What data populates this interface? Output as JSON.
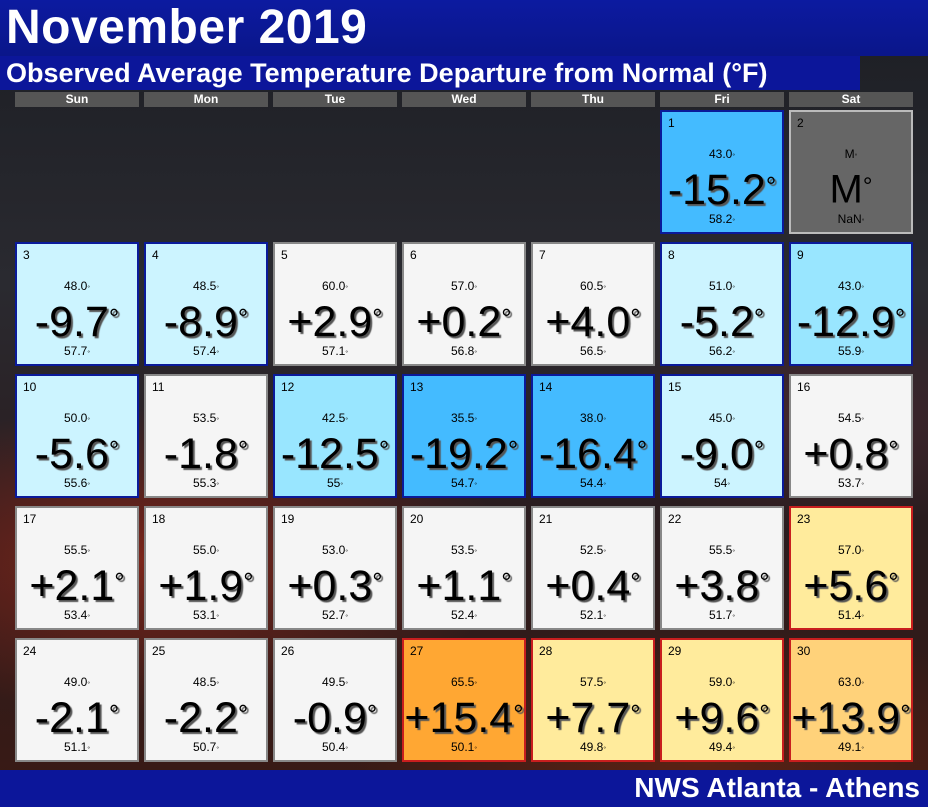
{
  "header": {
    "title": "November 2019",
    "subtitle": "Observed Average Temperature Departure from Normal (°F)"
  },
  "weekdays": [
    "Sun",
    "Mon",
    "Tue",
    "Wed",
    "Thu",
    "Fri",
    "Sat"
  ],
  "footer": {
    "text": "NWS Atlanta - Athens"
  },
  "colors": {
    "near_normal": "#f5f5f5",
    "cool_1": "#ccf4ff",
    "cool_2": "#99e6ff",
    "cool_3": "#44bbff",
    "warm_1": "#ffeb9c",
    "warm_2": "#ffd27a",
    "warm_3": "#ffa733",
    "missing": "#666666",
    "border_cool": "#0a1a9a",
    "border_warm": "#c81e1e",
    "border_neutral": "#888888"
  },
  "days": [
    {
      "day": "1",
      "col": 5,
      "row": 0,
      "observed": "43.0",
      "departure": "-15.2",
      "normal": "58.2",
      "color": "#44bbff",
      "border": "#0a1a9a"
    },
    {
      "day": "2",
      "col": 6,
      "row": 0,
      "observed": "M",
      "departure": "M",
      "normal": "NaN",
      "color": "#666666",
      "border": "#bbbbbb",
      "text_color": "#000000"
    },
    {
      "day": "3",
      "col": 0,
      "row": 1,
      "observed": "48.0",
      "departure": "-9.7",
      "normal": "57.7",
      "color": "#ccf4ff",
      "border": "#0a1a9a"
    },
    {
      "day": "4",
      "col": 1,
      "row": 1,
      "observed": "48.5",
      "departure": "-8.9",
      "normal": "57.4",
      "color": "#ccf4ff",
      "border": "#0a1a9a"
    },
    {
      "day": "5",
      "col": 2,
      "row": 1,
      "observed": "60.0",
      "departure": "+2.9",
      "normal": "57.1",
      "color": "#f5f5f5",
      "border": "#888888"
    },
    {
      "day": "6",
      "col": 3,
      "row": 1,
      "observed": "57.0",
      "departure": "+0.2",
      "normal": "56.8",
      "color": "#f5f5f5",
      "border": "#888888"
    },
    {
      "day": "7",
      "col": 4,
      "row": 1,
      "observed": "60.5",
      "departure": "+4.0",
      "normal": "56.5",
      "color": "#f5f5f5",
      "border": "#888888"
    },
    {
      "day": "8",
      "col": 5,
      "row": 1,
      "observed": "51.0",
      "departure": "-5.2",
      "normal": "56.2",
      "color": "#ccf4ff",
      "border": "#0a1a9a"
    },
    {
      "day": "9",
      "col": 6,
      "row": 1,
      "observed": "43.0",
      "departure": "-12.9",
      "normal": "55.9",
      "color": "#99e6ff",
      "border": "#0a1a9a"
    },
    {
      "day": "10",
      "col": 0,
      "row": 2,
      "observed": "50.0",
      "departure": "-5.6",
      "normal": "55.6",
      "color": "#ccf4ff",
      "border": "#0a1a9a"
    },
    {
      "day": "11",
      "col": 1,
      "row": 2,
      "observed": "53.5",
      "departure": "-1.8",
      "normal": "55.3",
      "color": "#f5f5f5",
      "border": "#888888"
    },
    {
      "day": "12",
      "col": 2,
      "row": 2,
      "observed": "42.5",
      "departure": "-12.5",
      "normal": "55",
      "color": "#99e6ff",
      "border": "#0a1a9a"
    },
    {
      "day": "13",
      "col": 3,
      "row": 2,
      "observed": "35.5",
      "departure": "-19.2",
      "normal": "54.7",
      "color": "#44bbff",
      "border": "#0a1a9a"
    },
    {
      "day": "14",
      "col": 4,
      "row": 2,
      "observed": "38.0",
      "departure": "-16.4",
      "normal": "54.4",
      "color": "#44bbff",
      "border": "#0a1a9a"
    },
    {
      "day": "15",
      "col": 5,
      "row": 2,
      "observed": "45.0",
      "departure": "-9.0",
      "normal": "54",
      "color": "#ccf4ff",
      "border": "#0a1a9a"
    },
    {
      "day": "16",
      "col": 6,
      "row": 2,
      "observed": "54.5",
      "departure": "+0.8",
      "normal": "53.7",
      "color": "#f5f5f5",
      "border": "#888888"
    },
    {
      "day": "17",
      "col": 0,
      "row": 3,
      "observed": "55.5",
      "departure": "+2.1",
      "normal": "53.4",
      "color": "#f5f5f5",
      "border": "#888888"
    },
    {
      "day": "18",
      "col": 1,
      "row": 3,
      "observed": "55.0",
      "departure": "+1.9",
      "normal": "53.1",
      "color": "#f5f5f5",
      "border": "#888888"
    },
    {
      "day": "19",
      "col": 2,
      "row": 3,
      "observed": "53.0",
      "departure": "+0.3",
      "normal": "52.7",
      "color": "#f5f5f5",
      "border": "#888888"
    },
    {
      "day": "20",
      "col": 3,
      "row": 3,
      "observed": "53.5",
      "departure": "+1.1",
      "normal": "52.4",
      "color": "#f5f5f5",
      "border": "#888888"
    },
    {
      "day": "21",
      "col": 4,
      "row": 3,
      "observed": "52.5",
      "departure": "+0.4",
      "normal": "52.1",
      "color": "#f5f5f5",
      "border": "#888888"
    },
    {
      "day": "22",
      "col": 5,
      "row": 3,
      "observed": "55.5",
      "departure": "+3.8",
      "normal": "51.7",
      "color": "#f5f5f5",
      "border": "#888888"
    },
    {
      "day": "23",
      "col": 6,
      "row": 3,
      "observed": "57.0",
      "departure": "+5.6",
      "normal": "51.4",
      "color": "#ffeb9c",
      "border": "#c81e1e"
    },
    {
      "day": "24",
      "col": 0,
      "row": 4,
      "observed": "49.0",
      "departure": "-2.1",
      "normal": "51.1",
      "color": "#f5f5f5",
      "border": "#888888"
    },
    {
      "day": "25",
      "col": 1,
      "row": 4,
      "observed": "48.5",
      "departure": "-2.2",
      "normal": "50.7",
      "color": "#f5f5f5",
      "border": "#888888"
    },
    {
      "day": "26",
      "col": 2,
      "row": 4,
      "observed": "49.5",
      "departure": "-0.9",
      "normal": "50.4",
      "color": "#f5f5f5",
      "border": "#888888"
    },
    {
      "day": "27",
      "col": 3,
      "row": 4,
      "observed": "65.5",
      "departure": "+15.4",
      "normal": "50.1",
      "color": "#ffa733",
      "border": "#c81e1e"
    },
    {
      "day": "28",
      "col": 4,
      "row": 4,
      "observed": "57.5",
      "departure": "+7.7",
      "normal": "49.8",
      "color": "#ffeb9c",
      "border": "#c81e1e"
    },
    {
      "day": "29",
      "col": 5,
      "row": 4,
      "observed": "59.0",
      "departure": "+9.6",
      "normal": "49.4",
      "color": "#ffeb9c",
      "border": "#c81e1e"
    },
    {
      "day": "30",
      "col": 6,
      "row": 4,
      "observed": "63.0",
      "departure": "+13.9",
      "normal": "49.1",
      "color": "#ffd27a",
      "border": "#c81e1e"
    }
  ]
}
